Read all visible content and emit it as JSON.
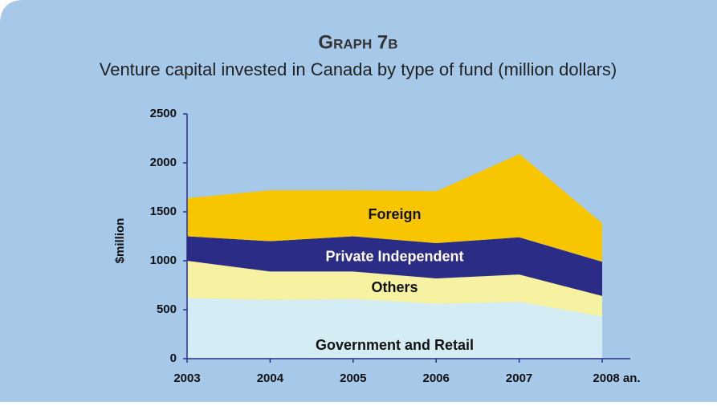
{
  "chart_data": {
    "type": "stacked_area",
    "title": "Graph 7b",
    "subtitle": "Venture capital invested in Canada by type of fund (million dollars)",
    "y_label": "$million",
    "categories": [
      "2003",
      "2004",
      "2005",
      "2006",
      "2007",
      "2008 an."
    ],
    "series": [
      {
        "name": "Government and Retail",
        "color": "#d4edf5",
        "values": [
          620,
          600,
          610,
          560,
          580,
          430
        ]
      },
      {
        "name": "Others",
        "color": "#f6f2a2",
        "values": [
          380,
          290,
          280,
          260,
          280,
          210
        ]
      },
      {
        "name": "Private Independent",
        "color": "#2b2c86",
        "values": [
          250,
          310,
          360,
          360,
          380,
          350
        ]
      },
      {
        "name": "Foreign",
        "color": "#f8c600",
        "values": [
          390,
          520,
          470,
          530,
          850,
          390
        ]
      }
    ],
    "ylim": [
      0,
      2500
    ],
    "yticks": [
      0,
      500,
      1000,
      1500,
      2000,
      2500
    ]
  }
}
